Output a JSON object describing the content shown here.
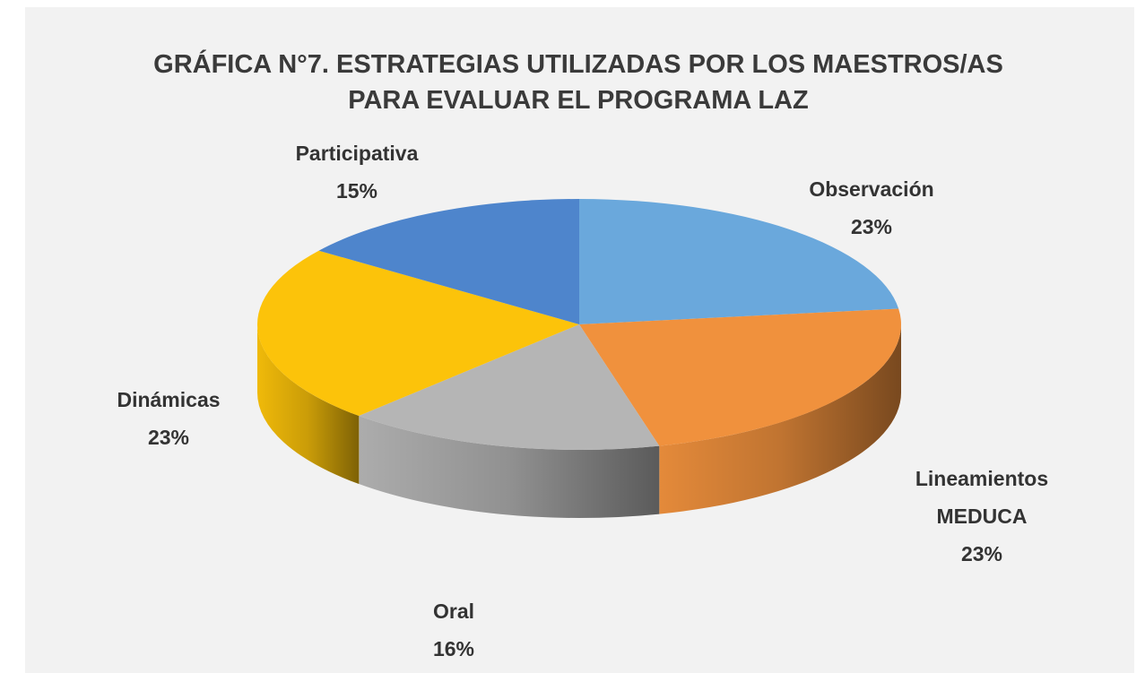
{
  "chart_data": {
    "type": "pie",
    "title": "GRÁFICA N°7. ESTRATEGIAS UTILIZADAS POR LOS MAESTROS/AS PARA EVALUAR EL PROGRAMA LAZ",
    "categories": [
      "Observación",
      "Lineamientos MEDUCA",
      "Oral",
      "Dinámicas",
      "Participativa"
    ],
    "values": [
      23,
      23,
      16,
      23,
      15
    ],
    "value_labels": [
      "23%",
      "23%",
      "16%",
      "23%",
      "15%"
    ],
    "colors": [
      "#6aa8dc",
      "#f0913d",
      "#b5b5b5",
      "#fcc30a",
      "#4e85cc"
    ],
    "3d": true
  }
}
